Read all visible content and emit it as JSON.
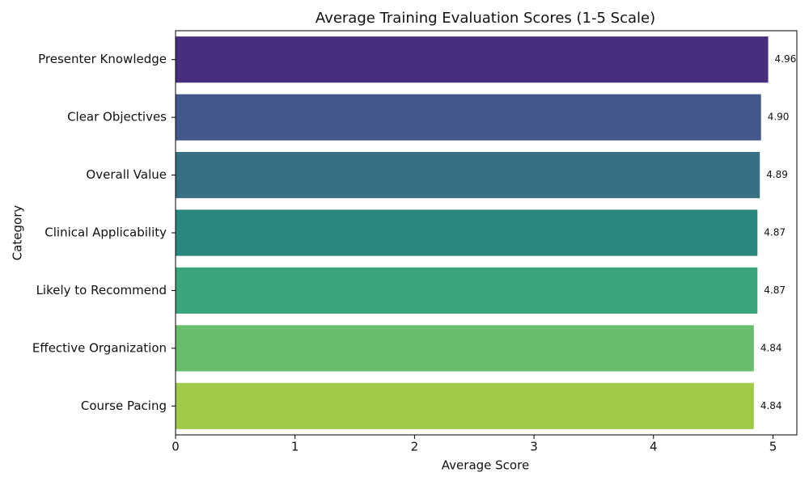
{
  "chart_data": {
    "type": "bar",
    "orientation": "horizontal",
    "title": "Average Training Evaluation Scores (1-5 Scale)",
    "x_label": "Average Score",
    "y_label": "Category",
    "categories": [
      "Presenter Knowledge",
      "Clear Objectives",
      "Overall Value",
      "Clinical Applicability",
      "Likely to Recommend",
      "Effective Organization",
      "Course Pacing"
    ],
    "values": [
      4.96,
      4.9,
      4.89,
      4.87,
      4.87,
      4.84,
      4.84
    ],
    "value_labels": [
      "4.96",
      "4.90",
      "4.89",
      "4.87",
      "4.87",
      "4.84",
      "4.84"
    ],
    "colors": [
      "#472f7d",
      "#44578a",
      "#386f82",
      "#2a877f",
      "#3aa47c",
      "#6bbd6e",
      "#a3c94a"
    ],
    "xlim": [
      0,
      5.2
    ],
    "xticks": [
      0,
      1,
      2,
      3,
      4,
      5
    ],
    "grid": false
  }
}
